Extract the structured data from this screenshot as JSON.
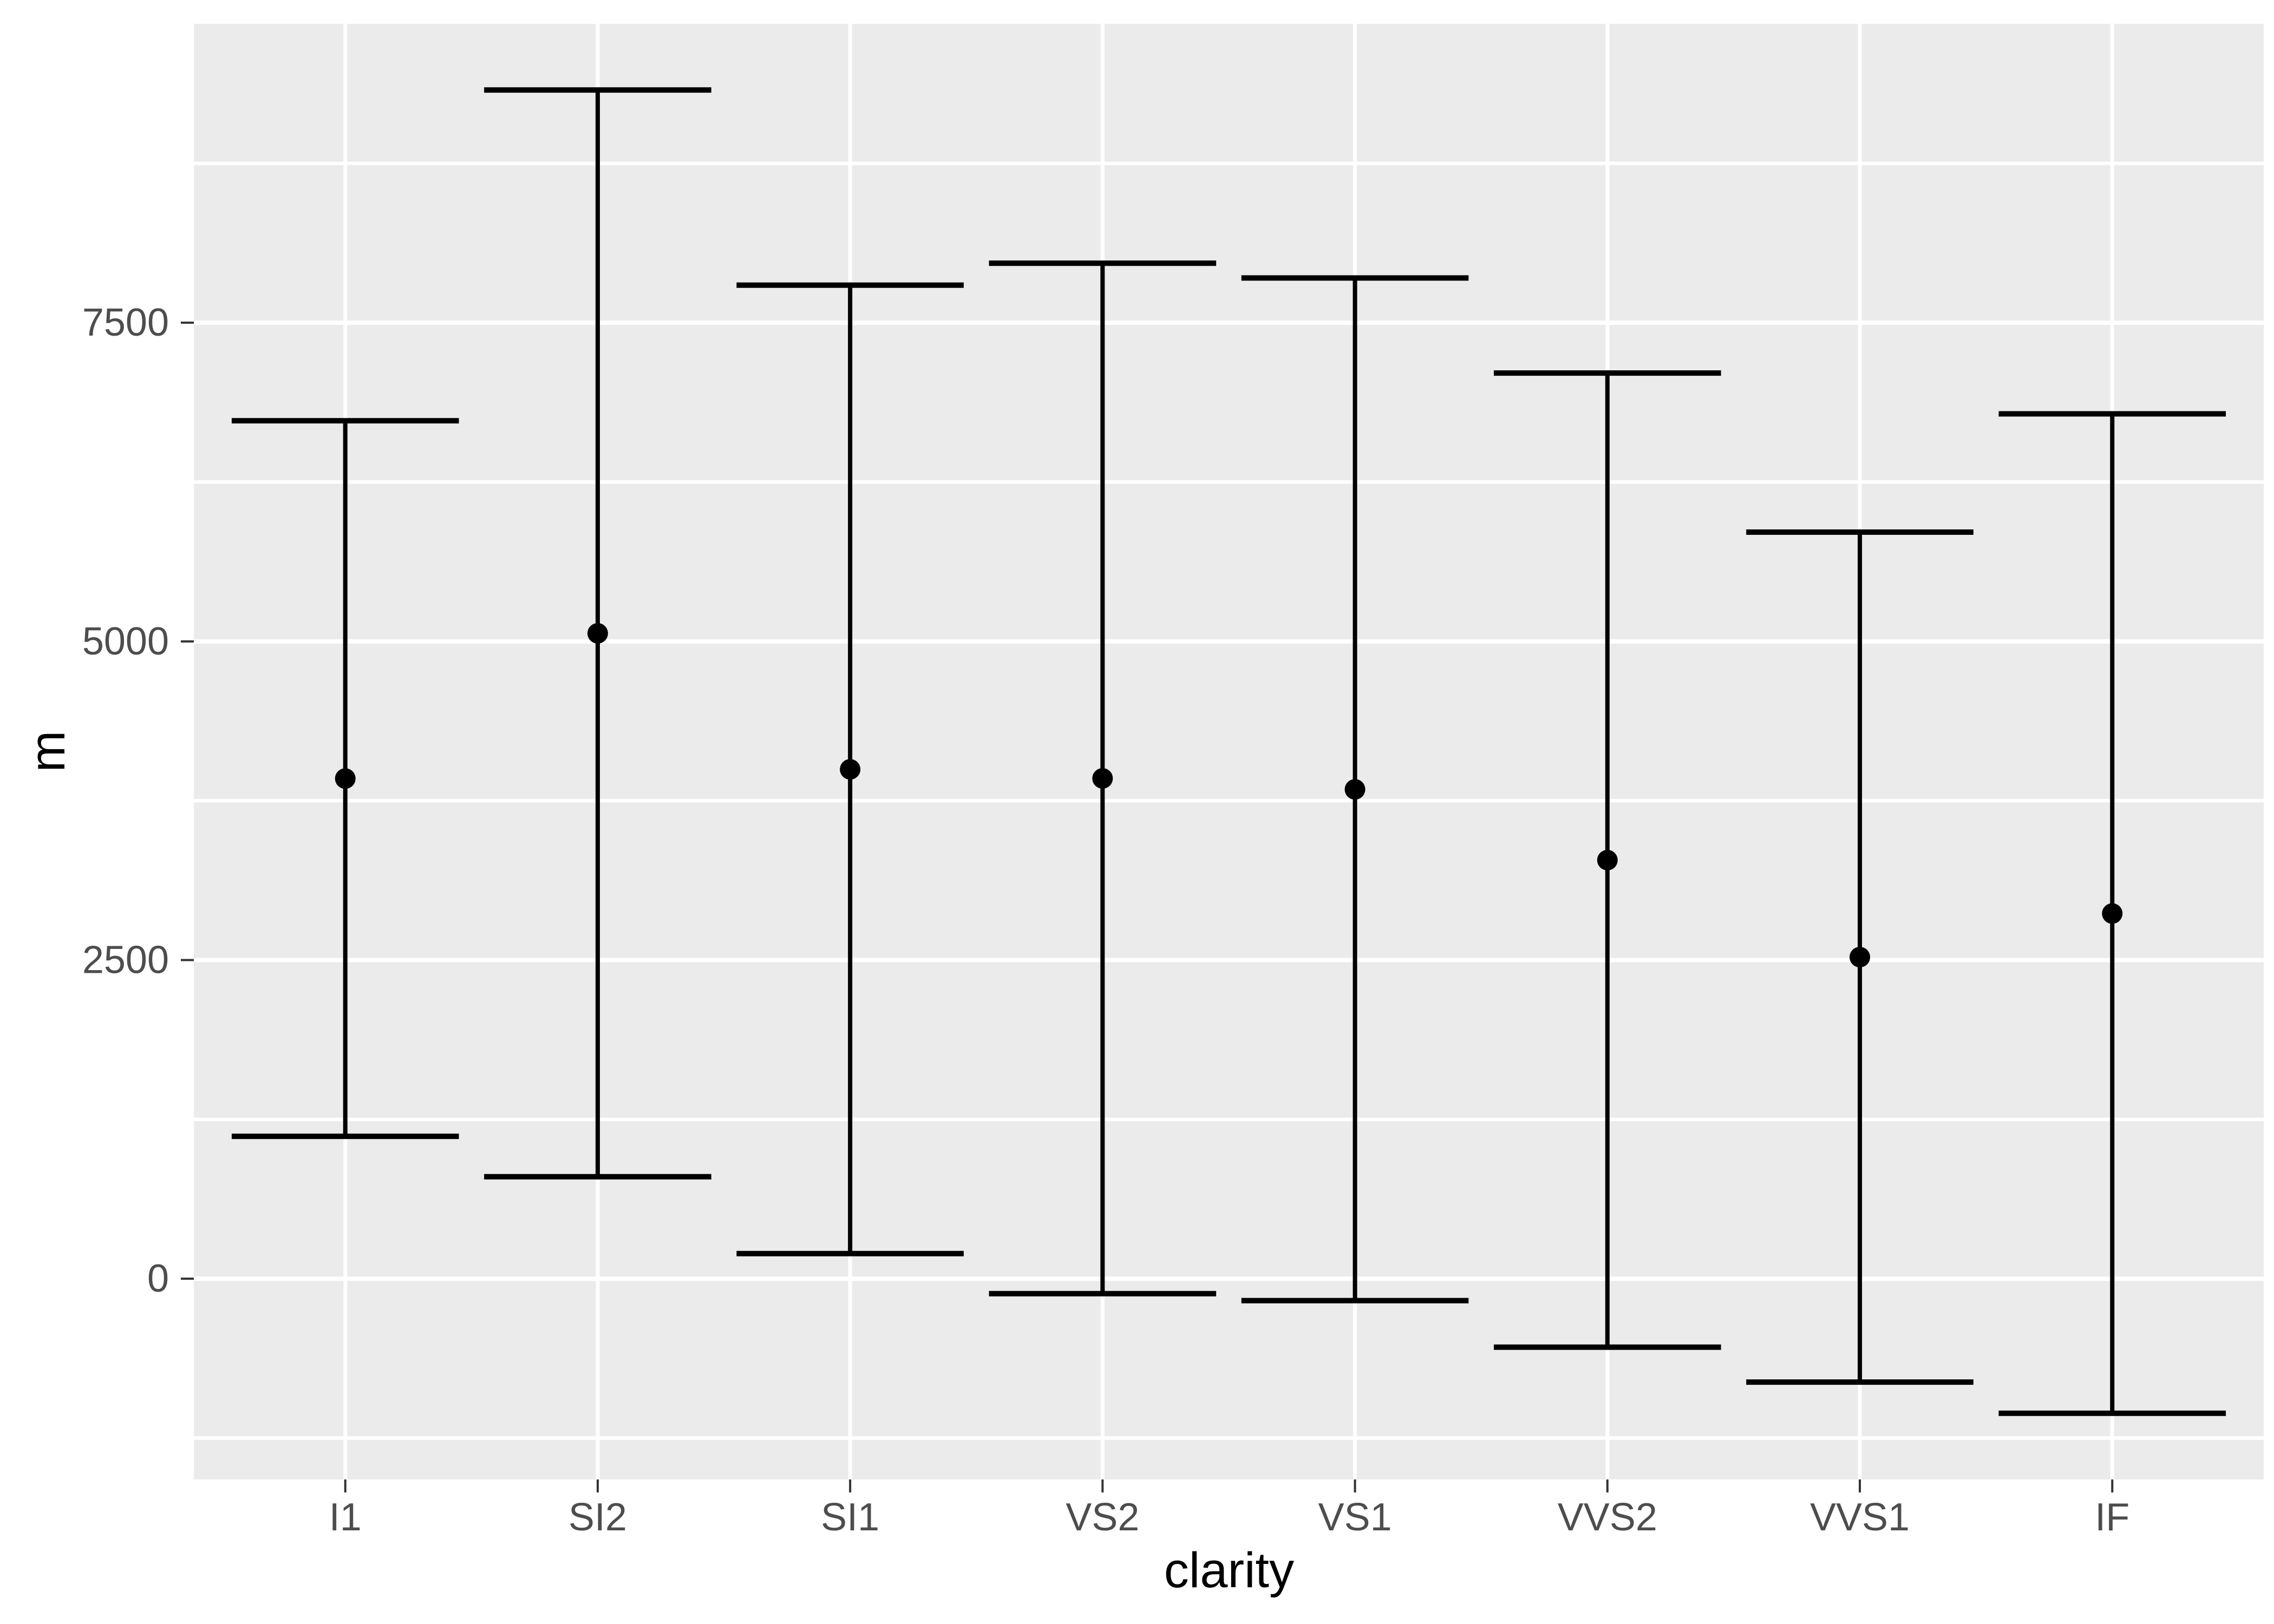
{
  "chart_data": {
    "type": "errorbar",
    "title": "",
    "xlabel": "clarity",
    "ylabel": "m",
    "categories": [
      "I1",
      "SI2",
      "SI1",
      "VS2",
      "VS1",
      "VVS2",
      "VVS1",
      "IF"
    ],
    "series": [
      {
        "name": "mean",
        "values": [
          3924,
          5063,
          3996,
          3925,
          3839,
          3284,
          2523,
          2865
        ]
      },
      {
        "name": "lower",
        "values": [
          1117,
          800,
          197,
          -117,
          -172,
          -537,
          -811,
          -1056
        ]
      },
      {
        "name": "upper",
        "values": [
          6731,
          9326,
          7795,
          7967,
          7851,
          7105,
          5857,
          6785
        ]
      }
    ],
    "y_ticks": [
      0,
      2500,
      5000,
      7500
    ],
    "y_tick_labels": [
      "0",
      "2500",
      "5000",
      "7500"
    ],
    "y_minor_ticks": [
      -1250,
      1250,
      3750,
      6250,
      8750
    ],
    "ylim": [
      -1575,
      9845
    ],
    "grid": "on",
    "legend": "none",
    "errorbar_cap_width": 0.9,
    "category_padding": 0.6
  },
  "colors": {
    "figure_background": "#FFFFFF",
    "panel_background": "#EBEBEB",
    "gridline": "#FFFFFF",
    "data_stroke": "#000000",
    "tick_label": "#4D4D4D",
    "tick_mark": "#333333",
    "axis_title": "#000000"
  }
}
